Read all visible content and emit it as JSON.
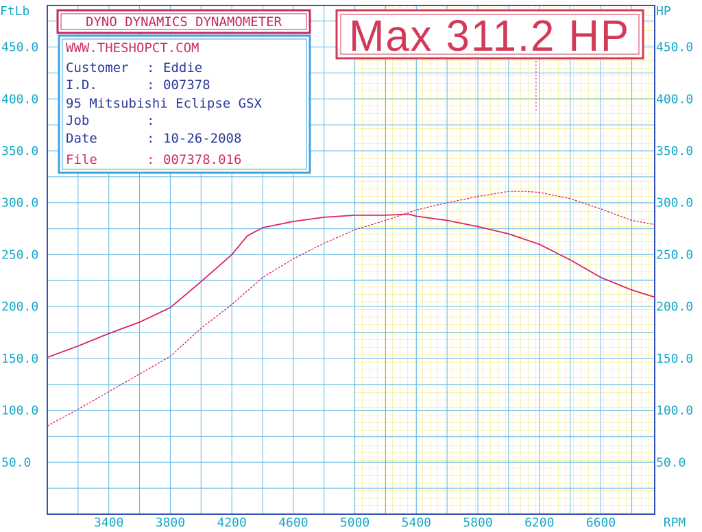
{
  "chart_data": {
    "type": "line",
    "title": "DYNO DYNAMICS DYNAMOMETER",
    "max_label": "Max 311.2 HP",
    "left_axis_unit": "FtLb",
    "right_axis_unit": "HP",
    "x_axis_unit": "RPM",
    "x_ticks": [
      "3400",
      "3800",
      "4200",
      "4600",
      "5000",
      "5400",
      "5800",
      "6200",
      "6600"
    ],
    "y_ticks": [
      "50.0",
      "100.0",
      "150.0",
      "200.0",
      "250.0",
      "300.0",
      "350.0",
      "400.0",
      "450.0"
    ],
    "xlim": [
      3000,
      6950
    ],
    "ylim": [
      0,
      490
    ],
    "grid": true,
    "series": [
      {
        "name": "",
        "kind": "torque",
        "style": "solid",
        "color": "#d8236a",
        "x": [
          3000,
          3200,
          3400,
          3600,
          3800,
          4000,
          4200,
          4300,
          4400,
          4600,
          4800,
          5000,
          5200,
          5350,
          5400,
          5600,
          5800,
          6000,
          6200,
          6400,
          6600,
          6800,
          6950
        ],
        "y": [
          151,
          162,
          174,
          185,
          199,
          224,
          250,
          268,
          276,
          282,
          286,
          288,
          288,
          289,
          287,
          283,
          277,
          270,
          260,
          245,
          228,
          216,
          209
        ]
      },
      {
        "name": "",
        "kind": "horsepower",
        "style": "dashed",
        "color": "#d8236a",
        "x": [
          3000,
          3200,
          3400,
          3600,
          3800,
          4000,
          4200,
          4400,
          4600,
          4800,
          5000,
          5200,
          5400,
          5600,
          5800,
          6000,
          6100,
          6200,
          6400,
          6600,
          6800,
          6950
        ],
        "y": [
          85,
          101,
          118,
          135,
          152,
          179,
          202,
          228,
          246,
          261,
          274,
          283,
          293,
          300,
          306,
          311,
          311,
          310,
          304,
          294,
          283,
          279
        ]
      }
    ]
  },
  "info_box": {
    "website": "WWW.THESHOPCT.COM",
    "customer_label": "Customer",
    "customer_value": "Eddie",
    "id_label": "I.D.",
    "id_value": "007378",
    "vehicle": "95 Mitsubishi Eclipse GSX",
    "job_label": "Job",
    "job_value": "",
    "date_label": "Date",
    "date_value": "10-26-2008",
    "file_label": "File",
    "file_value": "007378.016",
    "separator": ":"
  },
  "colors": {
    "axis_text": "#18a8c8",
    "grid_line": "#5fb8e0",
    "yellow_grid": "#f3e66a",
    "frame": "#3553b5",
    "curve": "#d8236a",
    "header_border": "#c52a5c",
    "info_border": "#3fa3e0",
    "info_text": "#2b3a9b"
  }
}
